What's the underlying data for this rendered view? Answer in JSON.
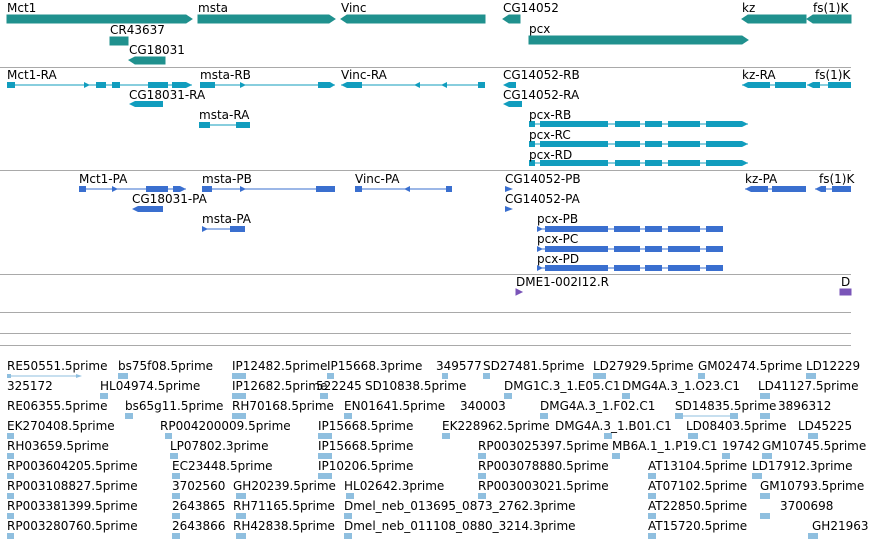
{
  "colors": {
    "gene": "#20918e",
    "transcript_ra": "#119dbe",
    "transcript_pa": "#3a6fcf",
    "clone": "#7a55b8",
    "est": "#8fbfdf",
    "divider": "#a9a9a9"
  },
  "genes": {
    "labels": [
      "Mct1",
      "msta",
      "Vinc",
      "CG14052",
      "kz",
      "fs(1)K",
      "CR43637",
      "CG18031",
      "pcx"
    ]
  },
  "transcripts_ra": {
    "labels": [
      "Mct1-RA",
      "msta-RB",
      "Vinc-RA",
      "CG14052-RB",
      "kz-RA",
      "fs(1)K",
      "CG18031-RA",
      "CG14052-RA",
      "msta-RA",
      "pcx-RB",
      "pcx-RC",
      "pcx-RD"
    ]
  },
  "transcripts_pa": {
    "labels": [
      "Mct1-PA",
      "msta-PB",
      "Vinc-PA",
      "CG14052-PB",
      "kz-PA",
      "fs(1)K",
      "CG18031-PA",
      "CG14052-PA",
      "msta-PA",
      "pcx-PB",
      "pcx-PC",
      "pcx-PD"
    ]
  },
  "clones": {
    "labels": [
      "DME1-002I12.R"
    ]
  },
  "ests": {
    "rows": [
      [
        "RE50551.5prime",
        "bs75f08.5prime",
        "IP12482.5prime",
        "IP15668.3prime",
        "349577",
        "SD27481.5prime",
        "LD27929.5prime",
        "GM02474.5prime",
        "LD12229"
      ],
      [
        "325172",
        "HL04974.5prime",
        "IP12682.5prime",
        "522245",
        "SD10838.5prime",
        "DMG1C.3_1.E05.C1",
        "DMG4A.3_1.O23.C1",
        "LD41127.5prime"
      ],
      [
        "RE06355.5prime",
        "bs65g11.5prime",
        "RH70168.5prime",
        "EN01641.5prime",
        "340003",
        "DMG4A.3_1.F02.C1",
        "SD14835.5prime",
        "3896312"
      ],
      [
        "EK270408.5prime",
        "RP004200009.5prime",
        "IP15668.5prime",
        "EK228962.5prime",
        "DMG4A.3_1.B01.C1",
        "LD08403.5prime",
        "LD45225"
      ],
      [
        "RH03659.5prime",
        "LP07802.3prime",
        "IP15668.5prime",
        "RP003025397.5prime",
        "MB6A.1_1.P19.C1",
        "19742",
        "GM10745.5prime"
      ],
      [
        "RP003604205.5prime",
        "EC23448.5prime",
        "IP10206.5prime",
        "RP003078880.5prime",
        "AT13104.5prime",
        "LD17912.3prime"
      ],
      [
        "RP003108827.5prime",
        "3702560",
        "GH20239.5prime",
        "HL02642.3prime",
        "RP003003021.5prime",
        "AT07102.5prime",
        "GM10793.5prime"
      ],
      [
        "RP003381399.5prime",
        "2643865",
        "RH71165.5prime",
        "Dmel_neb_013695_0873_2762.3prime",
        "AT22850.5prime",
        "3700698"
      ],
      [
        "RP003280760.5prime",
        "2643866",
        "RH42838.5prime",
        "Dmel_neb_011108_0880_3214.3prime",
        "AT15720.5prime",
        "GH21963"
      ]
    ]
  }
}
